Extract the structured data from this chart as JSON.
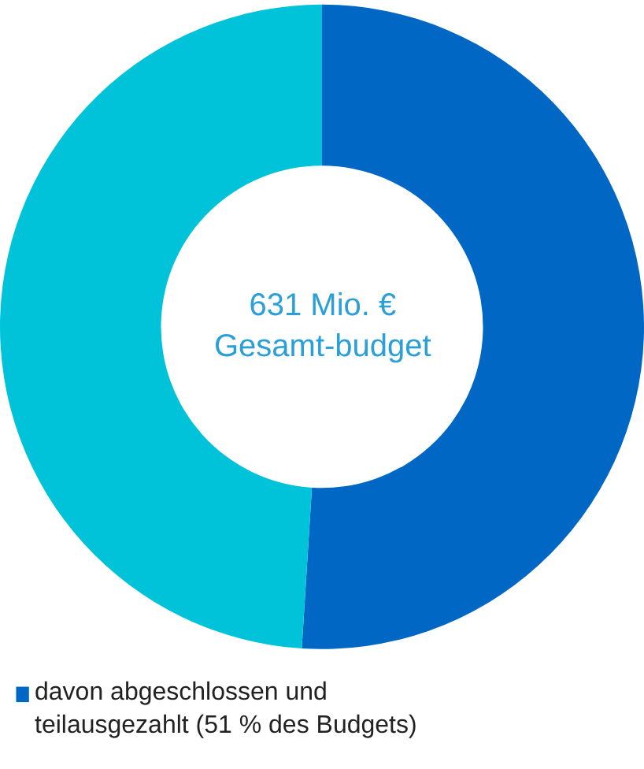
{
  "chart_data": {
    "type": "donut",
    "categories": [
      "davon abgeschlossen und teilausgezahlt (51 % des Budgets)",
      null
    ],
    "values": [
      51,
      49
    ],
    "colors": [
      "#0068c4",
      "#00c3d9"
    ],
    "annotations": [
      "631 Mio. € Gesamt-budget"
    ],
    "legend": "bottom"
  }
}
